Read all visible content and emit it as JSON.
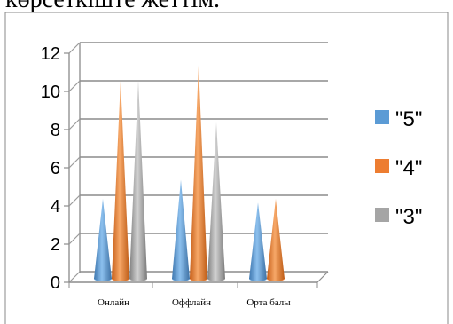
{
  "header_text": "көрсеткіште жеттім.",
  "chart_data": {
    "type": "bar",
    "shape": "cone",
    "categories": [
      "Онлайн",
      "Оффлайн",
      "Орта балы"
    ],
    "series": [
      {
        "name": "\"5\"",
        "values": [
          4,
          5,
          3.8
        ],
        "color": "#5b9bd5"
      },
      {
        "name": "\"4\"",
        "values": [
          10.2,
          11,
          4
        ],
        "color": "#ed7d31"
      },
      {
        "name": "\"3\"",
        "values": [
          10.2,
          8,
          0
        ],
        "color": "#a5a5a5"
      }
    ],
    "ylim": [
      0,
      12
    ],
    "yticks": [
      "0",
      "2",
      "4",
      "6",
      "8",
      "10",
      "12"
    ],
    "grid": true,
    "legend_position": "right"
  }
}
